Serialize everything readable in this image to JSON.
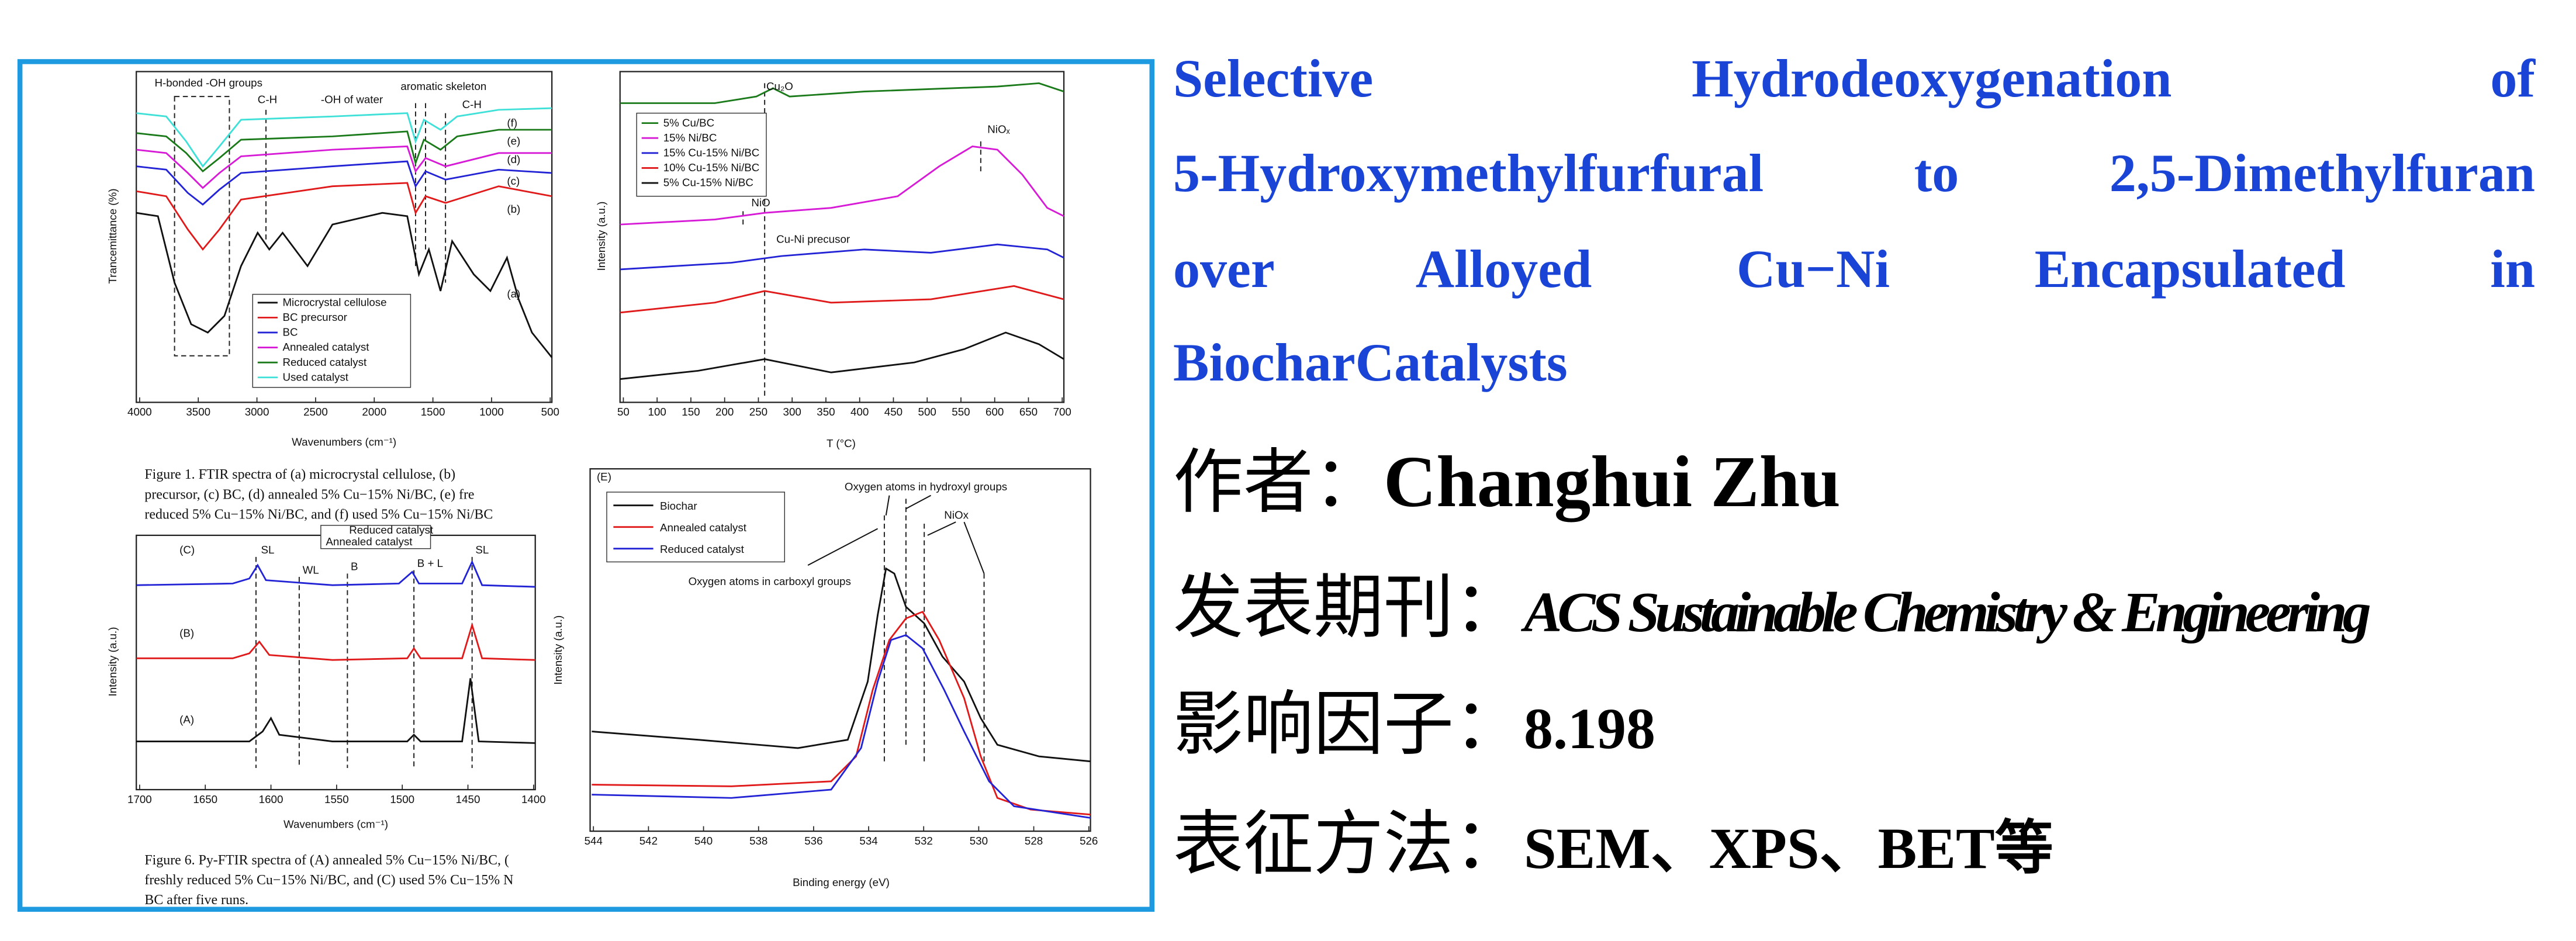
{
  "title_lines": [
    "Selective Hydrodeoxygenation of",
    "5-Hydroxymethylfurfural to 2,5-Dimethylfuran",
    "over Alloyed Cu−Ni Encapsulated in",
    "BiocharCatalysts"
  ],
  "info": [
    {
      "label": "作者：",
      "value": "Changhui Zhu"
    },
    {
      "label": "发表期刊：",
      "value": "ACS Sustainable Chemistry & Engineering"
    },
    {
      "label": "影响因子：",
      "value": "8.198"
    },
    {
      "label": "表征方法：",
      "value": "SEM、XPS、BET等"
    }
  ],
  "ftir": {
    "ylabel": "Trancemittance (%)",
    "xlabel": "Wavenumbers (cm⁻¹)",
    "xticks": [
      4000,
      3500,
      3000,
      2500,
      2000,
      1500,
      1000,
      500
    ],
    "annotations": [
      "H-bonded -OH groups",
      "C-H",
      "-OH of water",
      "aromatic skeleton",
      "C-H"
    ],
    "curve_labels": [
      "(f)",
      "(e)",
      "(d)",
      "(c)",
      "(b)",
      "(a)"
    ],
    "legend": [
      "Microcrystal cellulose",
      "BC precursor",
      "BC",
      "Annealed catalyst",
      "Reduced catalyst",
      "Used catalyst"
    ],
    "caption": [
      "Figure 1. FTIR spectra of (a) microcrystal cellulose, (b)",
      "precursor, (c) BC, (d) annealed 5% Cu−15% Ni/BC, (e) fre",
      "reduced 5% Cu−15% Ni/BC, and (f) used 5% Cu−15% Ni/BC"
    ]
  },
  "tpr": {
    "ylabel": "Intensity (a.u.)",
    "xlabel": "T (°C)",
    "xticks": [
      50,
      100,
      150,
      200,
      250,
      300,
      350,
      400,
      450,
      500,
      550,
      600,
      650,
      700
    ],
    "legend": [
      "5% Cu/BC",
      "15% Ni/BC",
      "15% Cu-15% Ni/BC",
      "10% Cu-15% Ni/BC",
      "5% Cu-15% Ni/BC"
    ],
    "annotations": [
      "Cu₂O",
      "NiOₓ",
      "NiO",
      "Cu-Ni precusor"
    ]
  },
  "pyftir": {
    "ylabel": "Intensity (a.u.)",
    "xlabel": "Wavenumbers (cm⁻¹)",
    "xticks": [
      1700,
      1650,
      1600,
      1550,
      1500,
      1450,
      1400
    ],
    "legend": [
      "Reduced catalyst",
      "Annealed catalyst"
    ],
    "curve_labels": [
      "(C)",
      "(B)",
      "(A)"
    ],
    "annotations": [
      "SL",
      "WL",
      "B",
      "B + L",
      "SL"
    ],
    "caption": [
      "Figure 6. Py-FTIR spectra of (A) annealed 5% Cu−15% Ni/BC, (",
      "freshly reduced 5% Cu−15% Ni/BC, and (C) used 5% Cu−15% N",
      "BC after five runs."
    ]
  },
  "xps": {
    "panel_label": "(E)",
    "ylabel": "Intensity (a.u.)",
    "xlabel": "Binding energy (eV)",
    "xticks": [
      544,
      542,
      540,
      538,
      536,
      534,
      532,
      530,
      528,
      526
    ],
    "legend": [
      "Biochar",
      "Annealed catalyst",
      "Reduced catalyst"
    ],
    "annotations": [
      "Oxygen atoms in hydroxyl groups",
      "NiOx",
      "Oxygen atoms in carboxyl groups"
    ]
  }
}
